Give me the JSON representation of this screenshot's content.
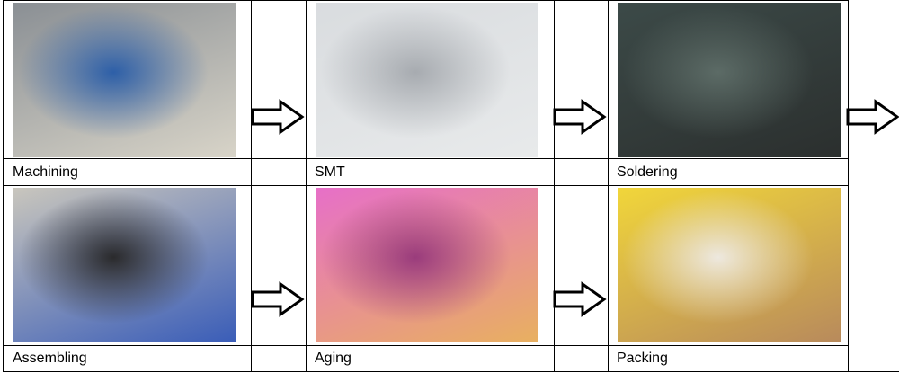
{
  "steps": [
    {
      "label": "Machining",
      "photo": "press-machine-photo",
      "colors": [
        "#8a8f94",
        "#2d5fa8",
        "#d8d4c8"
      ]
    },
    {
      "label": "SMT",
      "photo": "smt-line-photo",
      "colors": [
        "#d9dcdf",
        "#a7abb0",
        "#e8eaeb"
      ]
    },
    {
      "label": "Soldering",
      "photo": "soldering-photo",
      "colors": [
        "#3c4a48",
        "#5c6b66",
        "#2b2f2e"
      ]
    },
    {
      "label": "Assembling",
      "photo": "assembling-photo",
      "colors": [
        "#c9c6bd",
        "#2a2a2c",
        "#3a5db8"
      ]
    },
    {
      "label": "Aging",
      "photo": "aging-rack-photo",
      "colors": [
        "#e76fc8",
        "#9a3c7c",
        "#e8b060"
      ]
    },
    {
      "label": "Packing",
      "photo": "packing-photo",
      "colors": [
        "#f1d63a",
        "#ede8df",
        "#b88a5c"
      ]
    }
  ],
  "arrow_icon": "right-arrow-outline"
}
